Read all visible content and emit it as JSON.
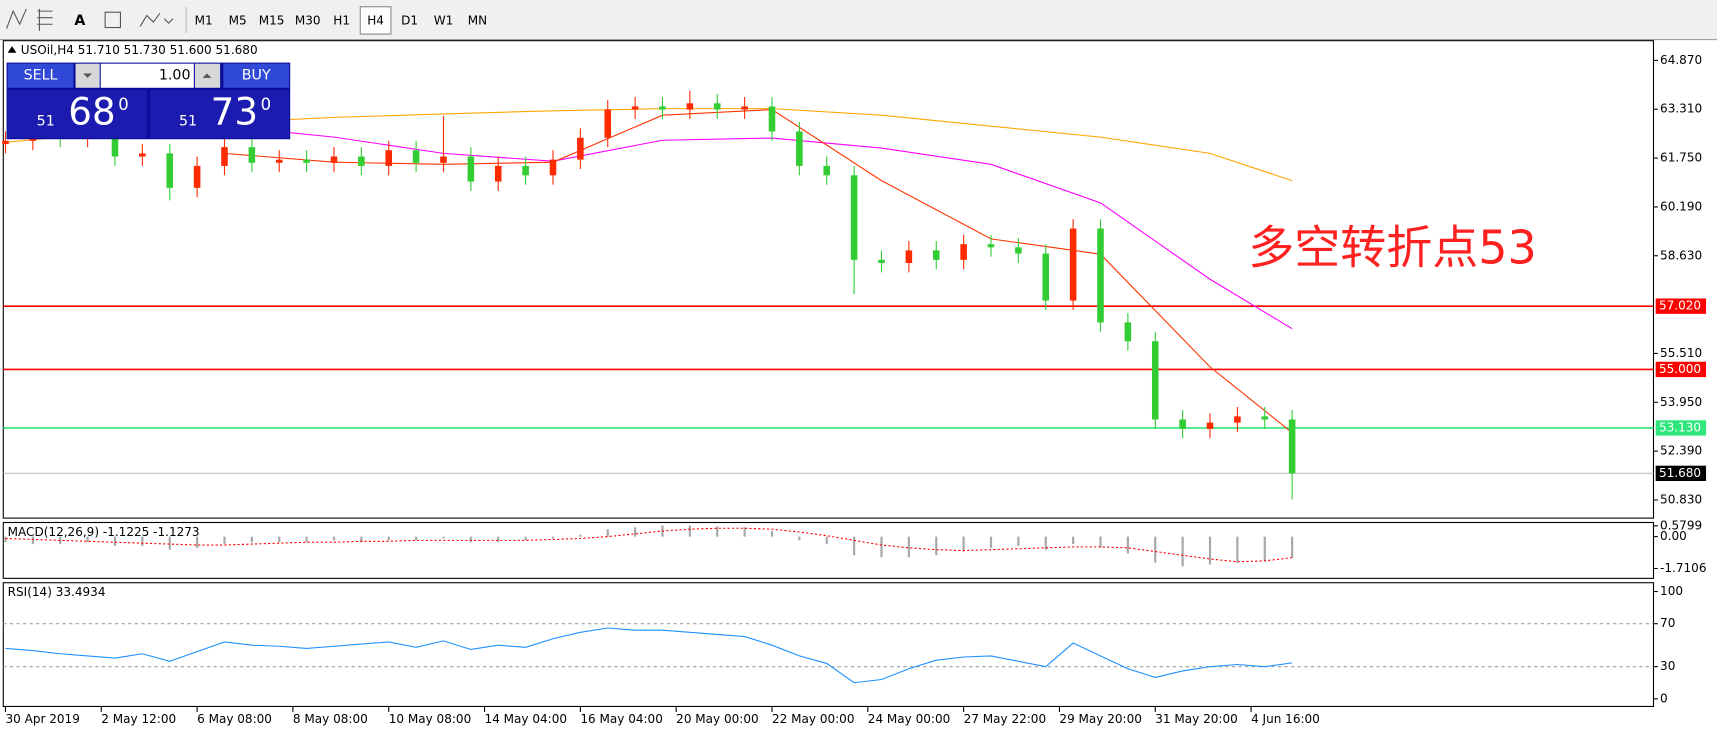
{
  "toolbar": {
    "timeframes": [
      "M1",
      "M5",
      "M15",
      "M30",
      "H1",
      "H4",
      "D1",
      "W1",
      "MN"
    ],
    "active": "H4"
  },
  "trade_panel": {
    "sell": "SELL",
    "lots": "1.00",
    "buy": "BUY",
    "bid": {
      "big": "51",
      "pips": "68",
      "point": "0"
    },
    "ask": {
      "big": "51",
      "pips": "73",
      "point": "0"
    }
  },
  "chart_data": {
    "type": "candlestick",
    "title": "USOil,H4  51.710 51.730 51.600 51.680",
    "annotation": "多空转折点53",
    "xlim": [
      -0.08,
      60.2
    ],
    "xticks": [
      {
        "value": 0,
        "label": "30 Apr 2019"
      },
      {
        "value": 3.5,
        "label": "2 May 12:00"
      },
      {
        "value": 7,
        "label": "6 May 08:00"
      },
      {
        "value": 10.5,
        "label": "8 May 08:00"
      },
      {
        "value": 14,
        "label": "10 May 08:00"
      },
      {
        "value": 17.5,
        "label": "14 May 04:00"
      },
      {
        "value": 21,
        "label": "16 May 04:00"
      },
      {
        "value": 24.5,
        "label": "20 May 00:00"
      },
      {
        "value": 28,
        "label": "22 May 00:00"
      },
      {
        "value": 31.5,
        "label": "24 May 00:00"
      },
      {
        "value": 35,
        "label": "27 May 22:00"
      },
      {
        "value": 38.5,
        "label": "29 May 20:00"
      },
      {
        "value": 42,
        "label": "31 May 20:00"
      },
      {
        "value": 45.5,
        "label": "4 Jun 16:00"
      }
    ],
    "ylim": [
      50.25,
      65.5
    ],
    "yticks": [
      {
        "value": 64.87,
        "label": "64.870"
      },
      {
        "value": 63.31,
        "label": "63.310"
      },
      {
        "value": 61.75,
        "label": "61.750"
      },
      {
        "value": 60.19,
        "label": "60.190"
      },
      {
        "value": 58.63,
        "label": "58.630"
      },
      {
        "value": 55.51,
        "label": "55.510"
      },
      {
        "value": 53.95,
        "label": "53.950"
      },
      {
        "value": 52.39,
        "label": "52.390"
      },
      {
        "value": 50.83,
        "label": "50.830"
      }
    ],
    "up_color": "#ff2a00",
    "down_color": "#32cd32",
    "open": [
      62.2,
      62.3,
      62.5,
      62.4,
      62.6,
      61.8,
      61.9,
      60.8,
      61.5,
      62.1,
      61.6,
      61.7,
      61.6,
      61.8,
      61.5,
      62.0,
      61.6,
      61.8,
      61.0,
      61.5,
      61.2,
      61.7,
      62.4,
      63.3,
      63.4,
      63.3,
      63.5,
      63.3,
      63.4,
      62.6,
      61.5,
      61.2,
      58.5,
      58.4,
      58.8,
      58.5,
      59.0,
      58.9,
      58.7,
      57.2,
      59.5,
      56.5,
      55.9,
      53.4,
      53.1,
      53.3,
      53.5,
      53.4
    ],
    "high": [
      62.6,
      62.8,
      62.8,
      62.9,
      62.9,
      62.2,
      62.2,
      61.8,
      62.4,
      62.4,
      62.0,
      62.0,
      62.1,
      62.1,
      62.3,
      62.3,
      63.1,
      62.1,
      61.8,
      61.8,
      62.0,
      62.7,
      63.6,
      63.7,
      63.7,
      63.9,
      63.8,
      63.7,
      63.7,
      62.9,
      61.8,
      61.5,
      58.8,
      59.1,
      59.1,
      59.3,
      59.3,
      59.2,
      59.0,
      59.8,
      59.8,
      56.8,
      56.2,
      53.7,
      53.6,
      53.8,
      53.8,
      53.7
    ],
    "low": [
      61.9,
      62.0,
      62.1,
      62.1,
      61.5,
      61.5,
      60.4,
      60.5,
      61.2,
      61.3,
      61.3,
      61.3,
      61.3,
      61.2,
      61.2,
      61.3,
      61.3,
      60.7,
      60.7,
      60.9,
      60.9,
      61.4,
      62.1,
      63.0,
      63.0,
      63.0,
      63.0,
      63.0,
      62.3,
      61.2,
      60.9,
      57.4,
      58.1,
      58.1,
      58.2,
      58.2,
      58.6,
      58.4,
      56.9,
      56.9,
      56.2,
      55.6,
      53.1,
      52.8,
      52.8,
      53.0,
      53.1,
      50.85
    ],
    "close": [
      62.3,
      62.5,
      62.4,
      62.6,
      61.8,
      61.9,
      60.8,
      61.5,
      62.1,
      61.6,
      61.7,
      61.6,
      61.8,
      61.5,
      62.0,
      61.6,
      61.8,
      61.0,
      61.5,
      61.2,
      61.7,
      62.4,
      63.3,
      63.4,
      63.3,
      63.5,
      63.3,
      63.4,
      62.6,
      61.5,
      61.2,
      58.5,
      58.4,
      58.8,
      58.5,
      59.0,
      58.9,
      58.7,
      57.2,
      59.5,
      56.5,
      55.9,
      53.4,
      53.1,
      53.3,
      53.5,
      53.4,
      51.68
    ],
    "levels": [
      {
        "value": 57.02,
        "label": "57.020",
        "line_color": "#ff0000",
        "box_color": "#ff0000"
      },
      {
        "value": 55.0,
        "label": "55.000",
        "line_color": "#ff0000",
        "box_color": "#ff0000"
      },
      {
        "value": 53.13,
        "label": "53.130",
        "line_color": "#2ee67c",
        "box_color": "#2ee67c"
      },
      {
        "value": 51.68,
        "label": "51.680",
        "line_color": "#c0c0c0",
        "box_color": "#000000"
      }
    ],
    "ma": {
      "x": [
        0,
        4,
        8,
        12,
        16,
        20,
        24,
        28,
        32,
        36,
        40,
        44,
        47
      ],
      "series": [
        {
          "color": "#ffa500",
          "values": [
            62.25,
            62.6,
            62.88,
            63.05,
            63.16,
            63.26,
            63.33,
            63.33,
            63.12,
            62.77,
            62.42,
            61.9,
            61.03
          ]
        },
        {
          "color": "#ff00ff",
          "values": [
            null,
            62.95,
            62.77,
            62.42,
            61.9,
            61.65,
            62.32,
            62.39,
            62.07,
            61.55,
            60.32,
            57.88,
            56.3
          ]
        },
        {
          "color": "#ff3300",
          "values": [
            null,
            null,
            61.9,
            61.62,
            61.55,
            61.62,
            63.12,
            63.3,
            61.03,
            59.17,
            58.68,
            55.08,
            52.98
          ]
        }
      ]
    },
    "macd": {
      "title": "MACD(12,26,9) -1.1225 -1.1273",
      "ylim": [
        -2.24,
        0.76
      ],
      "yticks": [
        0.5799,
        {
          "value": 0,
          "label": "0.00"
        },
        -1.7106
      ],
      "hist_color": "#a8a8a8",
      "signal_color": "#ff0000",
      "histogram": [
        -0.3,
        -0.4,
        -0.4,
        -0.3,
        -0.5,
        -0.5,
        -0.7,
        -0.6,
        -0.4,
        -0.3,
        -0.3,
        -0.3,
        -0.2,
        -0.3,
        -0.2,
        -0.2,
        -0.1,
        -0.3,
        -0.3,
        -0.2,
        -0.1,
        0.1,
        0.4,
        0.5,
        0.6,
        0.6,
        0.55,
        0.5,
        0.3,
        -0.2,
        -0.4,
        -1.0,
        -1.1,
        -1.1,
        -1.0,
        -0.8,
        -0.6,
        -0.5,
        -0.7,
        -0.4,
        -0.6,
        -0.9,
        -1.4,
        -1.6,
        -1.5,
        -1.4,
        -1.3,
        -1.1225
      ],
      "signal": [
        -0.1,
        -0.15,
        -0.2,
        -0.25,
        -0.3,
        -0.35,
        -0.4,
        -0.45,
        -0.45,
        -0.4,
        -0.35,
        -0.3,
        -0.3,
        -0.25,
        -0.25,
        -0.2,
        -0.2,
        -0.2,
        -0.2,
        -0.2,
        -0.15,
        -0.1,
        0,
        0.15,
        0.3,
        0.4,
        0.45,
        0.45,
        0.4,
        0.25,
        0.05,
        -0.2,
        -0.45,
        -0.6,
        -0.7,
        -0.75,
        -0.7,
        -0.65,
        -0.6,
        -0.55,
        -0.55,
        -0.6,
        -0.8,
        -1.0,
        -1.2,
        -1.35,
        -1.3,
        -1.1273
      ]
    },
    "rsi": {
      "title": "RSI(14) 33.4934",
      "ylim": [
        -7.1,
        108.2
      ],
      "yticks": [
        100,
        70,
        30,
        0
      ],
      "levels": [
        70,
        30
      ],
      "color": "#1e90ff",
      "values": [
        47,
        45,
        42,
        40,
        38,
        42,
        35,
        44,
        53,
        50,
        49,
        47,
        49,
        51,
        53,
        48,
        54,
        46,
        50,
        48,
        56,
        62,
        66,
        64,
        64,
        62,
        60,
        58,
        50,
        40,
        33,
        15,
        18,
        28,
        36,
        39,
        40,
        35,
        30,
        52,
        40,
        28,
        20,
        26,
        30,
        32,
        30,
        33.4934
      ]
    }
  }
}
